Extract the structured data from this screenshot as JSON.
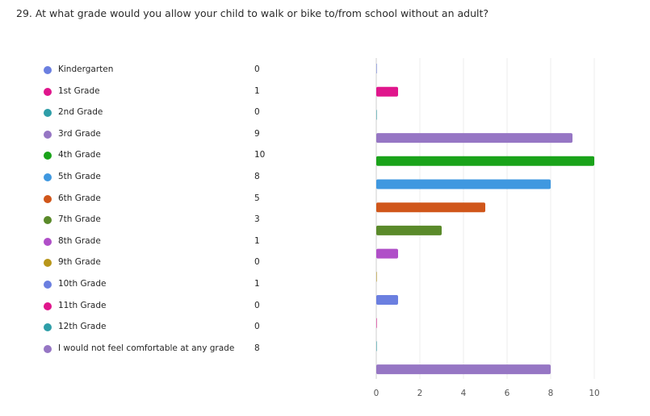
{
  "question": "29. At what grade would you allow your child to walk or bike to/from school without an adult?",
  "chart_data": {
    "type": "bar",
    "orientation": "horizontal",
    "categories": [
      "Kindergarten",
      "1st Grade",
      "2nd Grade",
      "3rd Grade",
      "4th Grade",
      "5th Grade",
      "6th Grade",
      "7th Grade",
      "8th Grade",
      "9th Grade",
      "10th Grade",
      "11th Grade",
      "12th Grade",
      "I would not feel comfortable at any grade"
    ],
    "legend_values": [
      0,
      1,
      0,
      9,
      10,
      8,
      5,
      3,
      1,
      0,
      1,
      0,
      0,
      8
    ],
    "bar_values": [
      0,
      1,
      0,
      9,
      10,
      8,
      5,
      3,
      1,
      0,
      1,
      0,
      0,
      8
    ],
    "colors": [
      "#6b7fe0",
      "#e0168c",
      "#2e9ea8",
      "#9676c4",
      "#1aa31a",
      "#3f98e0",
      "#d0561a",
      "#5a8a2a",
      "#b04fc8",
      "#b8961a",
      "#6b7fe0",
      "#e0168c",
      "#2e9ea8",
      "#9676c4"
    ],
    "xlim": [
      0,
      10
    ],
    "xticks": [
      0,
      2,
      4,
      6,
      8,
      10
    ],
    "grid": true,
    "legend_position": "left"
  }
}
